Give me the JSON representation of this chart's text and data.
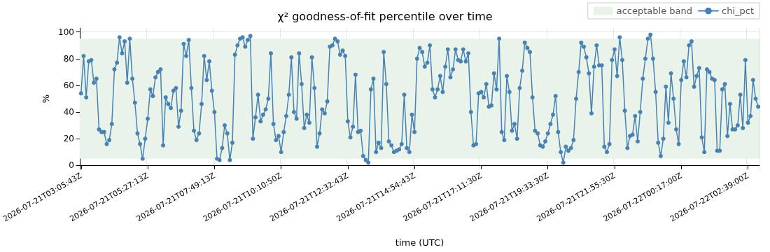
{
  "chart_data": {
    "type": "line",
    "title": "χ² goodness-of-fit percentile over time",
    "xlabel": "time (UTC)",
    "ylabel": "%",
    "categories": [
      "2026-07-21T03:05:43Z",
      null,
      null,
      null,
      null,
      null,
      null,
      null,
      null,
      null,
      null,
      null,
      null,
      null,
      null,
      null,
      null,
      null,
      null,
      null,
      null,
      null,
      null,
      null,
      null,
      null,
      "2026-07-21T05:27:13Z",
      null,
      null,
      null,
      null,
      null,
      null,
      null,
      null,
      null,
      null,
      null,
      null,
      null,
      null,
      null,
      null,
      null,
      null,
      null,
      null,
      null,
      null,
      null,
      null,
      null,
      "2026-07-21T07:49:13Z",
      null,
      null,
      null,
      null,
      null,
      null,
      null,
      null,
      null,
      null,
      null,
      null,
      null,
      null,
      null,
      null,
      null,
      null,
      null,
      null,
      null,
      null,
      null,
      null,
      null,
      "2026-07-21T10:10:50Z",
      null,
      null,
      null,
      null,
      null,
      null,
      null,
      null,
      null,
      null,
      null,
      null,
      null,
      null,
      null,
      null,
      null,
      null,
      null,
      null,
      null,
      null,
      null,
      null,
      null,
      "2026-07-21T12:32:43Z",
      null,
      null,
      null,
      null,
      null,
      null,
      null,
      null,
      null,
      null,
      null,
      null,
      null,
      null,
      null,
      null,
      null,
      null,
      null,
      null,
      null,
      null,
      null,
      null,
      null,
      "2026-07-21T14:54:43Z",
      null,
      null,
      null,
      null,
      null,
      null,
      null,
      null,
      null,
      null,
      null,
      null,
      null,
      null,
      null,
      null,
      null,
      null,
      null,
      null,
      null,
      null,
      null,
      null,
      null,
      "2026-07-21T17:11:30Z",
      null,
      null,
      null,
      null,
      null,
      null,
      null,
      null,
      null,
      null,
      null,
      null,
      null,
      null,
      null,
      null,
      null,
      null,
      null,
      null,
      null,
      null,
      null,
      null,
      null,
      "2026-07-21T19:33:30Z",
      null,
      null,
      null,
      null,
      null,
      null,
      null,
      null,
      null,
      null,
      null,
      null,
      null,
      null,
      null,
      null,
      null,
      null,
      null,
      null,
      null,
      null,
      null,
      null,
      null,
      "2026-07-21T21:55:30Z",
      null,
      null,
      null,
      null,
      null,
      null,
      null,
      null,
      null,
      null,
      null,
      null,
      null,
      null,
      null,
      null,
      null,
      null,
      null,
      null,
      null,
      null,
      null,
      null,
      null,
      "2026-07-22T00:17:00Z",
      null,
      null,
      null,
      null,
      null,
      null,
      null,
      null,
      null,
      null,
      null,
      null,
      null,
      null,
      null,
      null,
      null,
      null,
      null,
      null,
      null,
      null,
      null,
      null,
      null,
      "2026-07-22T02:39:00Z",
      null,
      null,
      null,
      null
    ],
    "series": [
      {
        "name": "chi_pct",
        "color": "#4682b4",
        "values": [
          54,
          82,
          51,
          78,
          79,
          62,
          65,
          27,
          25,
          25,
          16,
          19,
          31,
          72,
          77,
          96,
          84,
          93,
          62,
          95,
          65,
          47,
          24,
          16,
          5,
          20,
          35,
          57,
          52,
          66,
          70,
          72,
          15,
          51,
          46,
          43,
          56,
          58,
          29,
          41,
          91,
          82,
          94,
          58,
          26,
          19,
          24,
          46,
          82,
          64,
          78,
          56,
          40,
          5,
          4,
          13,
          30,
          24,
          4,
          17,
          83,
          90,
          95,
          96,
          89,
          94,
          97,
          20,
          36,
          53,
          33,
          38,
          42,
          50,
          84,
          31,
          19,
          22,
          10,
          25,
          37,
          53,
          81,
          40,
          35,
          84,
          61,
          28,
          38,
          32,
          81,
          58,
          14,
          24,
          42,
          39,
          48,
          89,
          90,
          95,
          93,
          83,
          86,
          82,
          33,
          21,
          29,
          68,
          25,
          26,
          7,
          4,
          2,
          57,
          65,
          10,
          17,
          13,
          85,
          61,
          18,
          15,
          10,
          11,
          12,
          16,
          53,
          13,
          10,
          38,
          25,
          80,
          88,
          85,
          74,
          77,
          90,
          57,
          51,
          57,
          67,
          55,
          74,
          87,
          66,
          72,
          87,
          79,
          78,
          87,
          78,
          84,
          40,
          15,
          16,
          54,
          55,
          51,
          61,
          44,
          45,
          69,
          57,
          95,
          25,
          19,
          67,
          55,
          26,
          31,
          20,
          58,
          71,
          92,
          88,
          85,
          51,
          26,
          24,
          15,
          14,
          18,
          24,
          31,
          38,
          52,
          25,
          10,
          2,
          14,
          11,
          13,
          19,
          50,
          70,
          92,
          89,
          81,
          69,
          39,
          74,
          90,
          75,
          75,
          14,
          10,
          16,
          79,
          87,
          67,
          96,
          79,
          41,
          13,
          22,
          23,
          37,
          18,
          40,
          65,
          80,
          95,
          98,
          80,
          55,
          17,
          7,
          20,
          59,
          32,
          69,
          50,
          27,
          16,
          64,
          78,
          66,
          90,
          93,
          59,
          67,
          73,
          21,
          10,
          72,
          70,
          65,
          64,
          11,
          11,
          57,
          61,
          22,
          46,
          27,
          27,
          30,
          53,
          28,
          79,
          32,
          37,
          64,
          50,
          44
        ]
      }
    ],
    "bands": [
      {
        "axis": "y",
        "from": 5,
        "to": 95,
        "label": "acceptable band",
        "color": "#eaf3ea"
      }
    ],
    "ylim": [
      -3,
      103
    ],
    "yticks": [
      0,
      20,
      40,
      60,
      80,
      100
    ],
    "grid": true,
    "legend": "top right",
    "marker": "circle",
    "line_style": "solid"
  }
}
